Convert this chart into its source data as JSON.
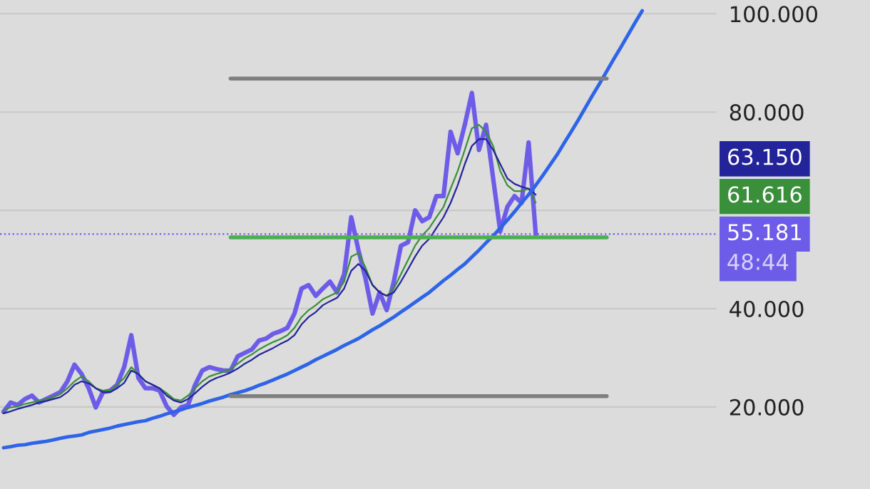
{
  "chart_data": {
    "type": "line",
    "categories": [
      null,
      null,
      null,
      null,
      null,
      null,
      null,
      null,
      null,
      null,
      null,
      null,
      null,
      null,
      null,
      null,
      null,
      null,
      null,
      null,
      null,
      null,
      null,
      null,
      null,
      null,
      null,
      null,
      null,
      null,
      null,
      null,
      null,
      null,
      null,
      null,
      null,
      null,
      null,
      null,
      null,
      null,
      null,
      null,
      null,
      null,
      null,
      null,
      null,
      null,
      null,
      null,
      null,
      null,
      null,
      null,
      null,
      null,
      null,
      null,
      null,
      null,
      null,
      null,
      null,
      null,
      null,
      null,
      null,
      null,
      null,
      null,
      null,
      null,
      null,
      null,
      null,
      null,
      null,
      null,
      null,
      null,
      null,
      null,
      null,
      null,
      null,
      null,
      null,
      null,
      null,
      null,
      null,
      null,
      null,
      null,
      null,
      null,
      null,
      null,
      null
    ],
    "series": [
      {
        "color": "#6c5ce7",
        "values": [
          19000,
          20900,
          20400,
          21600,
          22300,
          20900,
          21600,
          22300,
          23000,
          25200,
          28600,
          26700,
          23800,
          19900,
          23000,
          23300,
          24500,
          28100,
          34600,
          25900,
          23800,
          23800,
          23300,
          20100,
          18400,
          19900,
          20400,
          24500,
          27400,
          28100,
          27700,
          27400,
          27400,
          30300,
          31000,
          31700,
          33500,
          33900,
          34900,
          35400,
          36100,
          39000,
          44100,
          44800,
          42600,
          44100,
          45500,
          43300,
          47000,
          58600,
          52000,
          46200,
          39000,
          43300,
          39700,
          45500,
          52800,
          53500,
          60000,
          57800,
          58600,
          62900,
          62900,
          76000,
          71600,
          77400,
          83900,
          72300,
          77400,
          66500,
          55700,
          60700,
          62900,
          61500,
          73800,
          55200,
          null,
          null,
          null,
          null,
          null,
          null,
          null,
          null,
          null,
          null,
          null,
          null,
          null,
          null,
          null,
          null,
          null,
          null,
          null,
          null,
          null,
          null,
          null,
          null,
          null
        ]
      },
      {
        "color": "#3a8f3a",
        "values": [
          19400,
          19900,
          20100,
          20600,
          20900,
          21300,
          21600,
          22000,
          22600,
          23800,
          25200,
          26200,
          25200,
          23800,
          23300,
          23300,
          24500,
          25900,
          28100,
          26700,
          25200,
          24500,
          23800,
          22800,
          21600,
          21300,
          22300,
          23800,
          25200,
          26200,
          26700,
          27100,
          27700,
          28800,
          29900,
          30700,
          31700,
          32500,
          33200,
          33800,
          34600,
          36100,
          38300,
          39700,
          40700,
          41900,
          42600,
          43300,
          45500,
          50600,
          51300,
          48400,
          44800,
          43300,
          42600,
          44100,
          47000,
          49900,
          52800,
          54900,
          56400,
          58600,
          60700,
          64400,
          68000,
          72300,
          76700,
          77400,
          76000,
          73100,
          68000,
          65100,
          63900,
          63900,
          64400,
          61600,
          null,
          null,
          null,
          null,
          null,
          null,
          null,
          null,
          null,
          null,
          null,
          null,
          null,
          null,
          null,
          null,
          null,
          null,
          null,
          null,
          null,
          null,
          null,
          null,
          null
        ]
      },
      {
        "color": "#23239a",
        "values": [
          18700,
          19100,
          19600,
          20000,
          20400,
          20900,
          21200,
          21600,
          22000,
          23000,
          24500,
          25200,
          24800,
          23800,
          23000,
          23000,
          23800,
          24900,
          27400,
          26700,
          25200,
          24500,
          23800,
          22300,
          21300,
          20900,
          21600,
          22800,
          24100,
          25200,
          25900,
          26400,
          27000,
          27800,
          28800,
          29600,
          30600,
          31300,
          32000,
          32800,
          33500,
          34600,
          36800,
          38300,
          39300,
          40700,
          41500,
          42200,
          44100,
          47700,
          49100,
          47700,
          44800,
          43300,
          42600,
          43300,
          45500,
          48000,
          50600,
          52800,
          54200,
          56400,
          58600,
          61500,
          65100,
          69400,
          73100,
          74500,
          74500,
          72300,
          69400,
          66500,
          65400,
          64800,
          64400,
          63200,
          null,
          null,
          null,
          null,
          null,
          null,
          null,
          null,
          null,
          null,
          null,
          null,
          null,
          null,
          null,
          null,
          null,
          null,
          null,
          null,
          null,
          null,
          null,
          null,
          null
        ]
      },
      {
        "color": "#2e64e8",
        "values": [
          11700,
          11900,
          12200,
          12300,
          12600,
          12800,
          13000,
          13300,
          13600,
          13900,
          14100,
          14300,
          14800,
          15100,
          15400,
          15700,
          16100,
          16400,
          16700,
          17000,
          17200,
          17700,
          18100,
          18600,
          19000,
          19400,
          19900,
          20300,
          20700,
          21200,
          21600,
          22000,
          22500,
          22900,
          23300,
          23800,
          24400,
          24900,
          25500,
          26100,
          26700,
          27400,
          28100,
          28800,
          29600,
          30300,
          31000,
          31700,
          32500,
          33200,
          33900,
          34800,
          35700,
          36500,
          37400,
          38300,
          39300,
          40300,
          41300,
          42300,
          43300,
          44500,
          45700,
          46800,
          48000,
          49100,
          50500,
          51900,
          53400,
          54800,
          56400,
          58000,
          59700,
          61500,
          63200,
          65100,
          67100,
          69200,
          71300,
          73700,
          76000,
          78400,
          80900,
          83400,
          85800,
          88300,
          90800,
          93200,
          95700,
          98200,
          100600,
          null,
          null,
          null,
          null,
          null,
          null,
          null,
          null,
          null,
          null
        ]
      },
      {
        "color": "#7f7f7f",
        "values": [
          null,
          null,
          null,
          null,
          null,
          null,
          null,
          null,
          null,
          null,
          null,
          null,
          null,
          null,
          null,
          null,
          null,
          null,
          null,
          null,
          null,
          null,
          null,
          null,
          null,
          null,
          null,
          null,
          null,
          null,
          null,
          null,
          86800,
          86800,
          86800,
          86800,
          86800,
          86800,
          86800,
          86800,
          86800,
          86800,
          86800,
          86800,
          86800,
          86800,
          86800,
          86800,
          86800,
          86800,
          86800,
          86800,
          86800,
          86800,
          86800,
          86800,
          86800,
          86800,
          86800,
          86800,
          86800,
          86800,
          86800,
          86800,
          86800,
          86800,
          86800,
          86800,
          86800,
          86800,
          86800,
          86800,
          86800,
          86800,
          86800,
          86800,
          86800,
          86800,
          86800,
          86800,
          86800,
          86800,
          86800,
          86800,
          86800,
          86800,
          null,
          null,
          null,
          null,
          null,
          null,
          null,
          null,
          null,
          null,
          null,
          null,
          null,
          null,
          null
        ]
      },
      {
        "color": "#7f7f7f",
        "values": [
          null,
          null,
          null,
          null,
          null,
          null,
          null,
          null,
          null,
          null,
          null,
          null,
          null,
          null,
          null,
          null,
          null,
          null,
          null,
          null,
          null,
          null,
          null,
          null,
          null,
          null,
          null,
          null,
          null,
          null,
          null,
          null,
          22200,
          22200,
          22200,
          22200,
          22200,
          22200,
          22200,
          22200,
          22200,
          22200,
          22200,
          22200,
          22200,
          22200,
          22200,
          22200,
          22200,
          22200,
          22200,
          22200,
          22200,
          22200,
          22200,
          22200,
          22200,
          22200,
          22200,
          22200,
          22200,
          22200,
          22200,
          22200,
          22200,
          22200,
          22200,
          22200,
          22200,
          22200,
          22200,
          22200,
          22200,
          22200,
          22200,
          22200,
          22200,
          22200,
          22200,
          22200,
          22200,
          22200,
          22200,
          22200,
          22200,
          22200,
          null,
          null,
          null,
          null,
          null,
          null,
          null,
          null,
          null,
          null,
          null,
          null,
          null,
          null,
          null
        ]
      },
      {
        "color": "#4caf50",
        "values": [
          null,
          null,
          null,
          null,
          null,
          null,
          null,
          null,
          null,
          null,
          null,
          null,
          null,
          null,
          null,
          null,
          null,
          null,
          null,
          null,
          null,
          null,
          null,
          null,
          null,
          null,
          null,
          null,
          null,
          null,
          null,
          null,
          54500,
          54500,
          54500,
          54500,
          54500,
          54500,
          54500,
          54500,
          54500,
          54500,
          54500,
          54500,
          54500,
          54500,
          54500,
          54500,
          54500,
          54500,
          54500,
          54500,
          54500,
          54500,
          54500,
          54500,
          54500,
          54500,
          54500,
          54500,
          54500,
          54500,
          54500,
          54500,
          54500,
          54500,
          54500,
          54500,
          54500,
          54500,
          54500,
          54500,
          54500,
          54500,
          54500,
          54500,
          54500,
          54500,
          54500,
          54500,
          54500,
          54500,
          54500,
          54500,
          54500,
          54500,
          null,
          null,
          null,
          null,
          null,
          null,
          null,
          null,
          null,
          null,
          null,
          null,
          null,
          null,
          null
        ]
      }
    ],
    "ylim": [
      3300,
      102800
    ],
    "yticks": [
      {
        "value": 20000,
        "label": "20.000"
      },
      {
        "value": 40000,
        "label": "40.000"
      },
      {
        "value": 60000,
        "label": null
      },
      {
        "value": 80000,
        "label": "80.000"
      },
      {
        "value": 100000,
        "label": "100.000"
      }
    ],
    "tick_labels": "y",
    "grid": "y",
    "ref_lines": [
      {
        "axis": "y",
        "value": 55181,
        "label": "55.181",
        "color": "#6c5ce7",
        "line_style": "dotted"
      }
    ],
    "annotations": [
      "63.150",
      "61.616",
      "48:44"
    ]
  }
}
